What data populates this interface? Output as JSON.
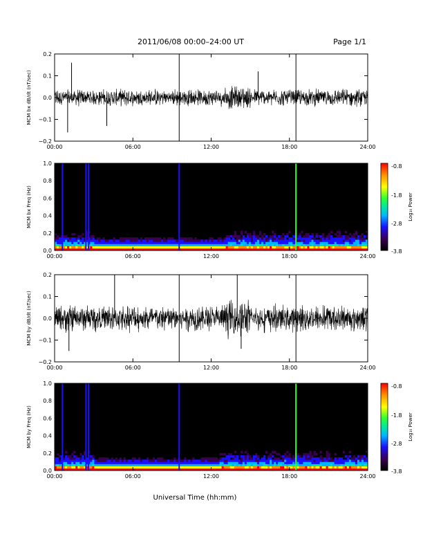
{
  "header": {
    "title": "2011/06/08  00:00–24:00 UT",
    "page": "Page 1/1"
  },
  "x_axis": {
    "title": "Universal Time (hh:mm)",
    "tick_labels": [
      "00:00",
      "06:00",
      "12:00",
      "18:00",
      "24:00"
    ]
  },
  "colorbar": {
    "label": "Log₁₀ Power",
    "tick_labels": [
      "-0.8",
      "-1.8",
      "-2.8",
      "-3.8"
    ],
    "range": [
      -3.8,
      -0.8
    ],
    "colors": [
      "#000000",
      "#3a0050",
      "#1a10ff",
      "#00b4ff",
      "#00e8a0",
      "#30ff30",
      "#ffff00",
      "#ff8c00",
      "#ff0000"
    ]
  },
  "chart_data": [
    {
      "type": "line",
      "ylabel": "MCM bx dB/dt (nT/sec)",
      "xlim": [
        0,
        24
      ],
      "ylim": [
        -0.2,
        0.2
      ],
      "y_tick_labels": [
        "0.2",
        "0.1",
        "0.0",
        "−0.1",
        "−0.2"
      ],
      "y_tick_values": [
        0.2,
        0.1,
        0.0,
        -0.1,
        -0.2
      ],
      "grid": false,
      "series_color": "#000000",
      "noise_level": 0.022,
      "spikes": [
        {
          "x": 9.55,
          "y": 0.2
        },
        {
          "x": 9.55,
          "y": -0.2
        },
        {
          "x": 18.5,
          "y": 0.2
        },
        {
          "x": 18.5,
          "y": -0.2
        },
        {
          "x": 1.3,
          "y": 0.16
        },
        {
          "x": 1.0,
          "y": -0.16
        },
        {
          "x": 4.0,
          "y": -0.13
        },
        {
          "x": 15.6,
          "y": 0.12
        }
      ]
    },
    {
      "type": "heatmap",
      "ylabel": "MCM bx Freq (Hz)",
      "xlim": [
        0,
        24
      ],
      "ylim": [
        0.0,
        1.0
      ],
      "y_tick_labels": [
        "1.0",
        "0.8",
        "0.6",
        "0.4",
        "0.2",
        "0.0"
      ],
      "y_tick_values": [
        1.0,
        0.8,
        0.6,
        0.4,
        0.2,
        0.0
      ],
      "z_range": [
        -3.8,
        -0.8
      ],
      "bright_columns": [
        0.6,
        2.4,
        2.6,
        9.55,
        18.5
      ],
      "active_bands": [
        [
          0.0,
          3.0
        ],
        [
          13.0,
          24.0
        ]
      ]
    },
    {
      "type": "line",
      "ylabel": "MCM by dB/dt (nT/sec)",
      "xlim": [
        0,
        24
      ],
      "ylim": [
        -0.2,
        0.2
      ],
      "y_tick_labels": [
        "0.2",
        "0.1",
        "0.0",
        "−0.1",
        "−0.2"
      ],
      "y_tick_values": [
        0.2,
        0.1,
        0.0,
        -0.1,
        -0.2
      ],
      "grid": false,
      "series_color": "#000000",
      "noise_level": 0.035,
      "spikes": [
        {
          "x": 4.6,
          "y": 0.2
        },
        {
          "x": 9.55,
          "y": 0.2
        },
        {
          "x": 9.55,
          "y": -0.2
        },
        {
          "x": 14.0,
          "y": 0.2
        },
        {
          "x": 18.5,
          "y": 0.2
        },
        {
          "x": 18.5,
          "y": -0.2
        },
        {
          "x": 1.1,
          "y": -0.15
        },
        {
          "x": 14.3,
          "y": -0.14
        }
      ]
    },
    {
      "type": "heatmap",
      "ylabel": "MCM by Freq (Hz)",
      "xlim": [
        0,
        24
      ],
      "ylim": [
        0.0,
        1.0
      ],
      "y_tick_labels": [
        "1.0",
        "0.8",
        "0.6",
        "0.4",
        "0.2",
        "0.0"
      ],
      "y_tick_values": [
        1.0,
        0.8,
        0.6,
        0.4,
        0.2,
        0.0
      ],
      "z_range": [
        -3.8,
        -0.8
      ],
      "bright_columns": [
        0.6,
        2.4,
        2.6,
        9.55,
        18.5
      ],
      "active_bands": [
        [
          0.0,
          3.0
        ],
        [
          12.5,
          24.0
        ]
      ]
    }
  ]
}
